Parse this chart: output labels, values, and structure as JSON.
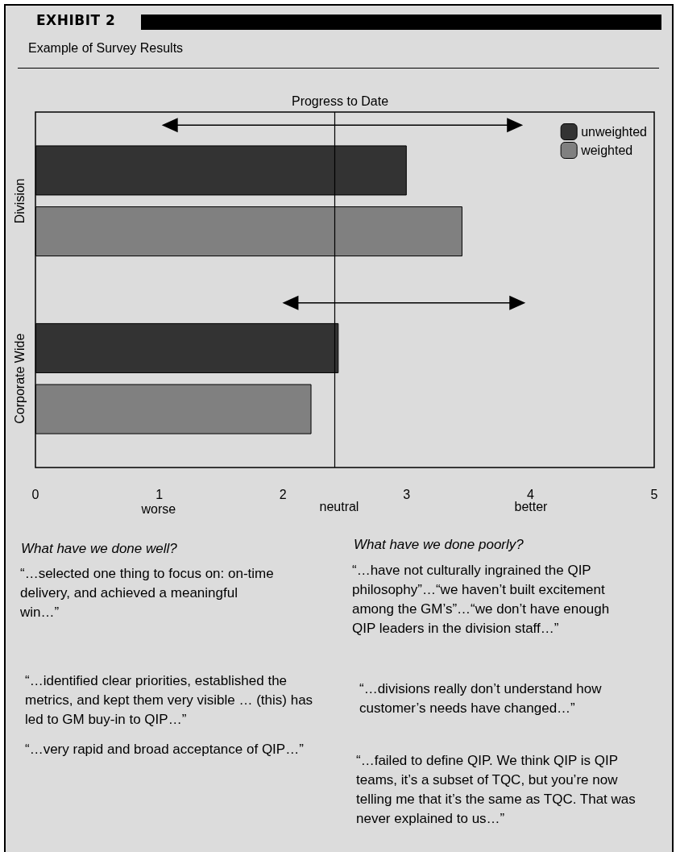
{
  "chart_data": {
    "type": "bar",
    "orientation": "horizontal",
    "title": "Progress to Date",
    "subtitle": "Example of Survey Results",
    "categories": [
      "Division",
      "Corporate Wide"
    ],
    "series": [
      {
        "name": "unweighted",
        "color": "#333333",
        "values": [
          3.0,
          2.45
        ]
      },
      {
        "name": "weighted",
        "color": "#808080",
        "values": [
          3.45,
          2.23
        ]
      }
    ],
    "xlim": [
      0,
      5
    ],
    "xticks": [
      0,
      1,
      2,
      3,
      4,
      5
    ],
    "ref_lines": [
      {
        "axis": "x",
        "value": 2.42,
        "color": "#000000"
      }
    ],
    "grid": false,
    "legend": "top right",
    "annotations": [
      "EXHIBIT 2",
      "What have we done well?",
      "“…selected one thing to focus on: on-time delivery, and achieved a meaningful win…”",
      "“…identified clear priorities, established the metrics, and kept them very visible … (this) has led to GM buy-in to QIP…”",
      "“…very rapid and broad  acceptance of QIP…”",
      "What have we done poorly?",
      "“…have not culturally ingrained the QIP philosophy”…“we haven’t built excitement among the GM’s”…“we don’t have enough QIP leaders in the division staff…”",
      "“…divisions really don’t understand how customer’s needs have changed…”",
      "“…failed to define QIP. We think QIP is QIP teams, it’s a subset of TQC, but you’re now telling me that it’s the same as TQC. That was never explained to us…”",
      "worse",
      "neutral",
      "better"
    ]
  }
}
